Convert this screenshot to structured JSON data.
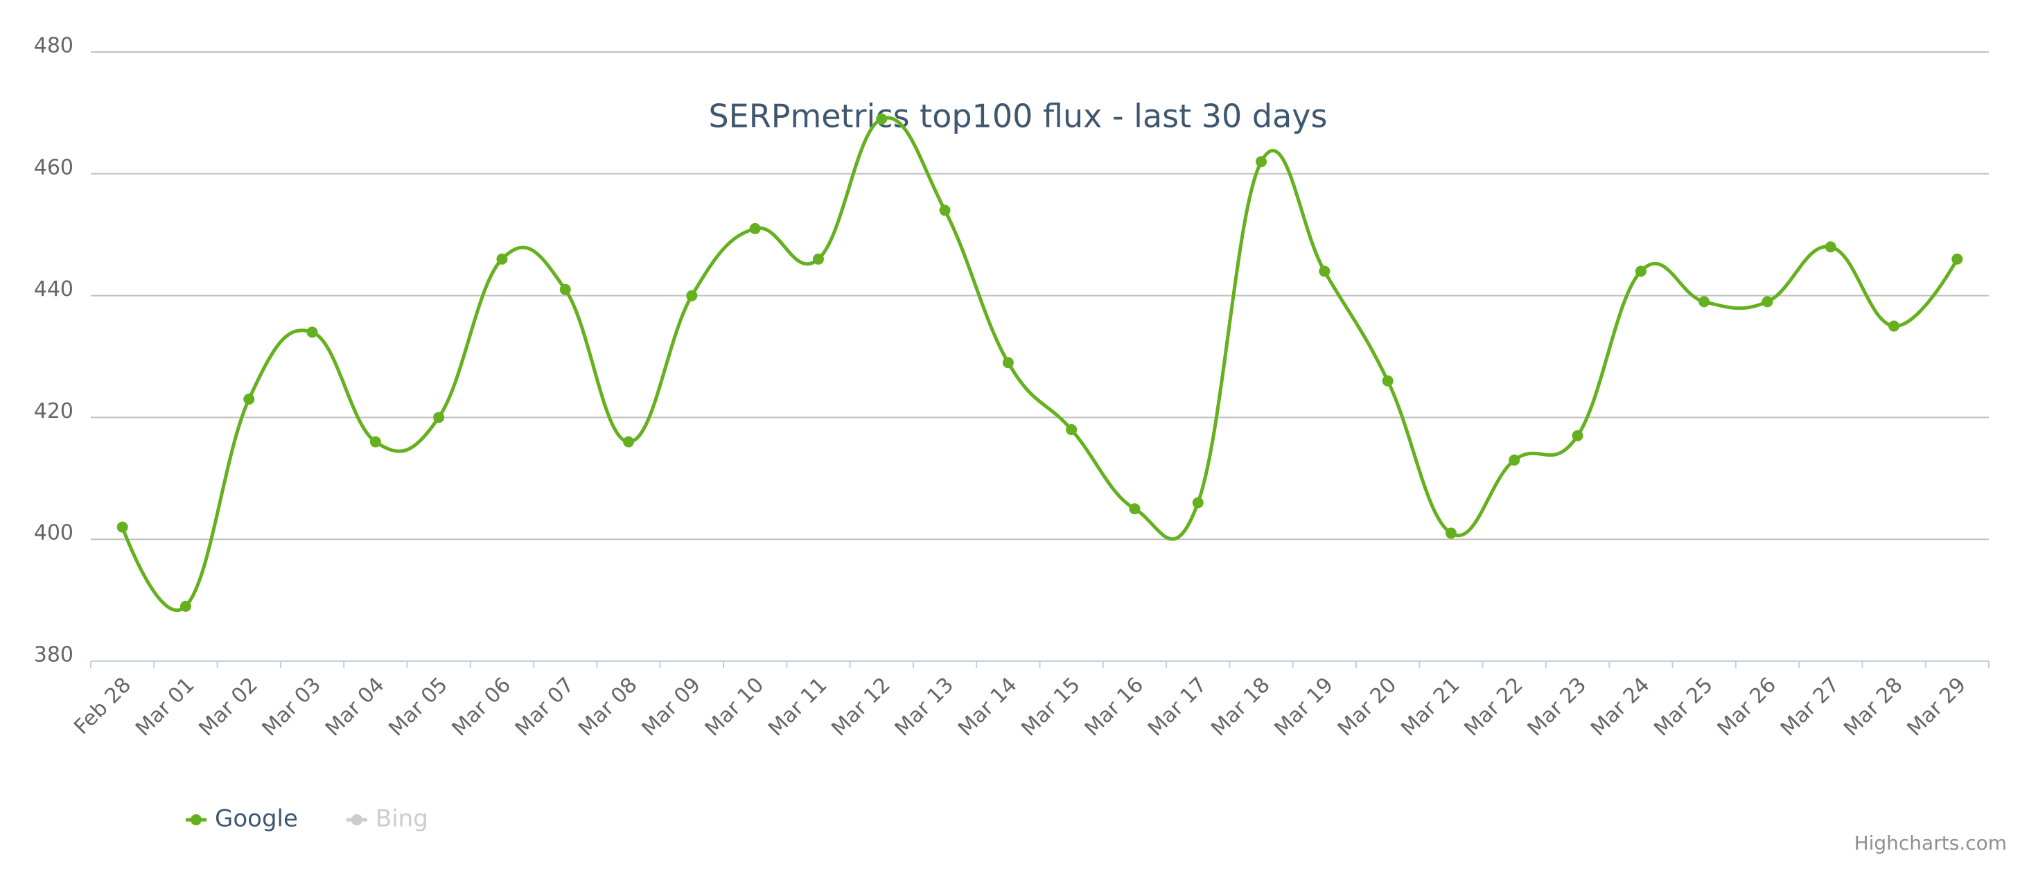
{
  "chart_data": {
    "type": "spline",
    "title": "SERPmetrics top100 flux - last 30 days",
    "categories": [
      "Feb 28",
      "Mar 01",
      "Mar 02",
      "Mar 03",
      "Mar 04",
      "Mar 05",
      "Mar 06",
      "Mar 07",
      "Mar 08",
      "Mar 09",
      "Mar 10",
      "Mar 11",
      "Mar 12",
      "Mar 13",
      "Mar 14",
      "Mar 15",
      "Mar 16",
      "Mar 17",
      "Mar 18",
      "Mar 19",
      "Mar 20",
      "Mar 21",
      "Mar 22",
      "Mar 23",
      "Mar 24",
      "Mar 25",
      "Mar 26",
      "Mar 27",
      "Mar 28",
      "Mar 29"
    ],
    "series": [
      {
        "name": "Google",
        "color": "#64b01e",
        "values": [
          402,
          389,
          423,
          434,
          416,
          420,
          446,
          441,
          416,
          440,
          451,
          446,
          469,
          454,
          429,
          418,
          405,
          406,
          462,
          444,
          426,
          401,
          413,
          417,
          444,
          439,
          439,
          448,
          435,
          446
        ]
      },
      {
        "name": "Bing",
        "color": "#cccccc",
        "visible": false
      }
    ],
    "ylim": [
      380,
      480
    ],
    "yticks": [
      380,
      400,
      420,
      440,
      460,
      480
    ],
    "grid": true,
    "legend": "bottom-left",
    "credits": "Highcharts.com"
  }
}
